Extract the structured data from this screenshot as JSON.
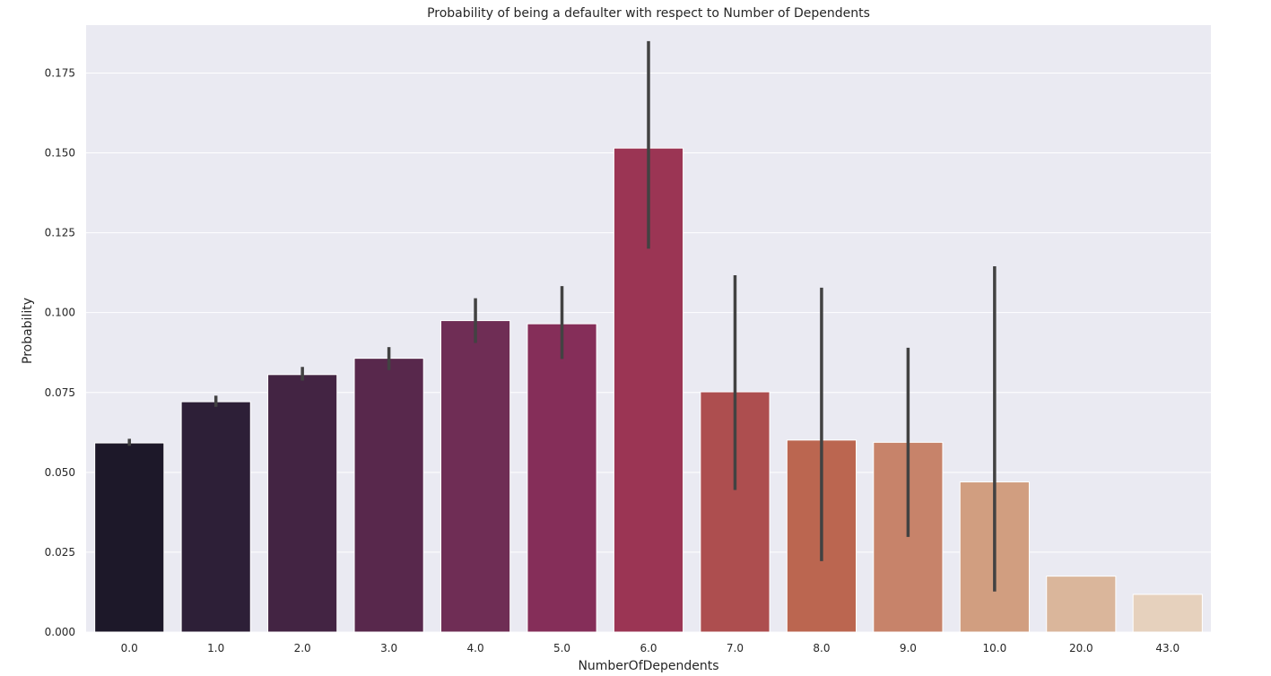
{
  "chart_data": {
    "type": "bar",
    "title": "Probability of being a defaulter with respect to Number of Dependents",
    "xlabel": "NumberOfDependents",
    "ylabel": "Probability",
    "categories": [
      "0.0",
      "1.0",
      "2.0",
      "3.0",
      "4.0",
      "5.0",
      "6.0",
      "7.0",
      "8.0",
      "9.0",
      "10.0",
      "20.0",
      "43.0"
    ],
    "values": [
      0.0592,
      0.0721,
      0.0806,
      0.0857,
      0.0975,
      0.0965,
      0.1515,
      0.0752,
      0.0601,
      0.0594,
      0.047,
      0.0175,
      0.0118
    ],
    "error_low": [
      0.0583,
      0.0705,
      0.0787,
      0.082,
      0.0905,
      0.0855,
      0.12,
      0.0445,
      0.0222,
      0.0298,
      0.0127,
      null,
      null
    ],
    "error_high": [
      0.0605,
      0.074,
      0.083,
      0.0892,
      0.1045,
      0.1083,
      0.185,
      0.1117,
      0.1078,
      0.089,
      0.1145,
      null,
      null
    ],
    "ylim": [
      0,
      0.19
    ],
    "yticks": [
      "0.000",
      "0.025",
      "0.050",
      "0.075",
      "0.100",
      "0.125",
      "0.150",
      "0.175"
    ],
    "grid": true,
    "colors": [
      "#1d1829",
      "#2d1f37",
      "#432443",
      "#58284c",
      "#6f2d55",
      "#852e59",
      "#9b3554",
      "#ad4e4f",
      "#bb6650",
      "#c7836a",
      "#d19e80",
      "#dab69b",
      "#e6d1bd"
    ],
    "background_color": "#eaeaf2",
    "error_bar_color": "#424242"
  }
}
